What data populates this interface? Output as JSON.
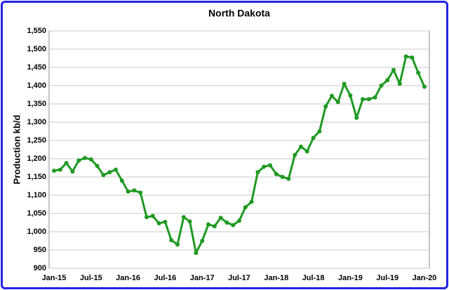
{
  "chart_data": {
    "type": "line",
    "title": "North Dakota",
    "y_label": "Production kb/d",
    "categories": [
      "Jan-15",
      null,
      null,
      null,
      null,
      null,
      "Jul-15",
      null,
      null,
      null,
      null,
      null,
      "Jan-16",
      null,
      null,
      null,
      null,
      null,
      "Jul-16",
      null,
      null,
      null,
      null,
      null,
      "Jan-17",
      null,
      null,
      null,
      null,
      null,
      "Jul-17",
      null,
      null,
      null,
      null,
      null,
      "Jan-18",
      null,
      null,
      null,
      null,
      null,
      "Jul-18",
      null,
      null,
      null,
      null,
      null,
      "Jan-19",
      null,
      null,
      null,
      null,
      null,
      "Jul-19",
      null,
      null,
      null,
      null,
      null,
      "Jan-20"
    ],
    "series": [
      {
        "name": "North Dakota",
        "color": "#1f9a22",
        "values": [
          1167,
          1170,
          1188,
          1165,
          1195,
          1202,
          1198,
          1180,
          1155,
          1163,
          1170,
          1140,
          1110,
          1113,
          1107,
          1040,
          1043,
          1023,
          1027,
          977,
          965,
          1040,
          1028,
          942,
          975,
          1020,
          1015,
          1038,
          1025,
          1018,
          1030,
          1067,
          1082,
          1163,
          1178,
          1182,
          1158,
          1150,
          1145,
          1210,
          1233,
          1220,
          1257,
          1275,
          1343,
          1372,
          1355,
          1405,
          1373,
          1312,
          1363,
          1363,
          1368,
          1400,
          1415,
          1443,
          1405,
          1480,
          1477,
          1435,
          1397
        ]
      }
    ],
    "ylim": [
      900,
      1550
    ],
    "yticks": [
      900,
      950,
      {
        "value": 1000,
        "label": "1,000"
      },
      {
        "value": 1050,
        "label": "1,050"
      },
      {
        "value": 1100,
        "label": "1,100"
      },
      {
        "value": 1150,
        "label": "1,150"
      },
      {
        "value": 1200,
        "label": "1,200"
      },
      {
        "value": 1250,
        "label": "1,250"
      },
      {
        "value": 1300,
        "label": "1,300"
      },
      {
        "value": 1350,
        "label": "1,350"
      },
      {
        "value": 1400,
        "label": "1,400"
      },
      {
        "value": 1450,
        "label": "1,450"
      },
      {
        "value": 1500,
        "label": "1,500"
      },
      {
        "value": 1550,
        "label": "1,550"
      }
    ],
    "grid": true
  }
}
